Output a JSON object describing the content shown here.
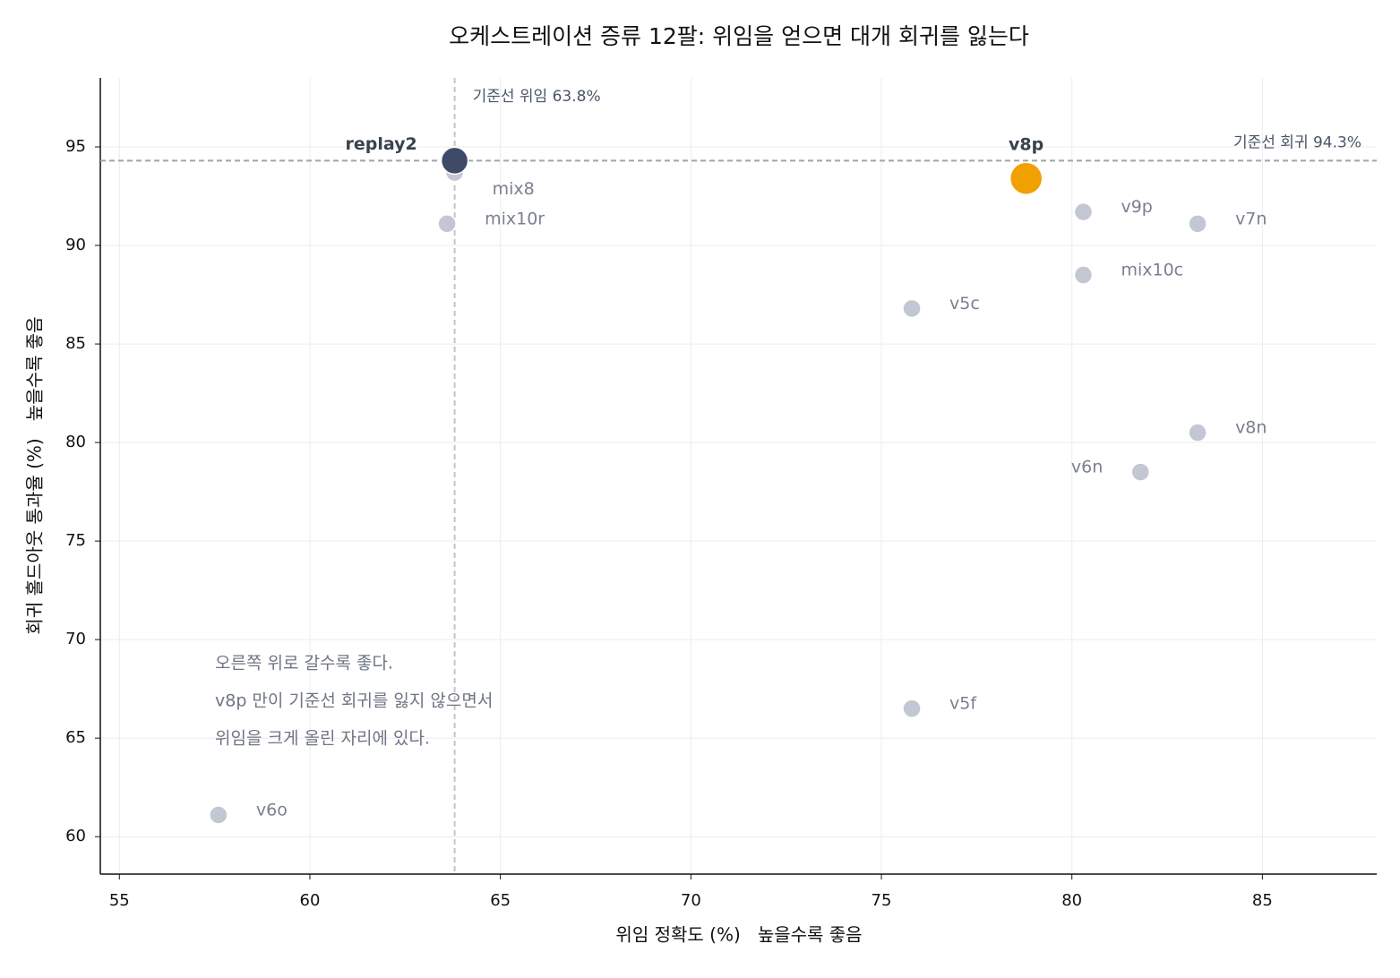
{
  "chart_data": {
    "type": "scatter",
    "title": "오케스트레이션 증류 12팔: 위임을 얻으면 대개 회귀를 잃는다",
    "x_label": "위임 정확도 (%)   높을수록 좋음",
    "y_label": "회귀 홀드아웃 통과율 (%)   높을수록 좋음",
    "point_labels": [
      "replay2",
      "mix8",
      "mix10r",
      "v8p",
      "v9p",
      "v7n",
      "mix10c",
      "v5c",
      "v8n",
      "v6n",
      "v5f",
      "v6o"
    ],
    "x": [
      63.8,
      63.8,
      63.6,
      78.8,
      80.3,
      83.3,
      80.3,
      75.8,
      83.3,
      81.8,
      75.8,
      57.6
    ],
    "values": [
      94.3,
      93.7,
      91.1,
      93.4,
      91.7,
      91.1,
      88.5,
      86.8,
      80.5,
      78.5,
      66.5,
      61.1
    ],
    "colors": [
      "#3f4a68",
      "#c3c7d3",
      "#c3c7d3",
      "#f0a000",
      "#c3c7d3",
      "#c3c7d3",
      "#c3c7d3",
      "#c3c7d3",
      "#c3c7d3",
      "#c3c7d3",
      "#c3c7d3",
      "#c3c7d3"
    ],
    "reference_lines": [
      {
        "axis": "x",
        "value": 63.8,
        "label": "기준선 위임 63.8%"
      },
      {
        "axis": "y",
        "value": 94.3,
        "label": "기준선 회귀 94.3%"
      }
    ],
    "annotation": [
      "오른쪽 위로 갈수록 좋다.",
      "v8p 만이 기준선 회귀를 잃지 않으면서",
      "위임을 크게 올린 자리에 있다."
    ],
    "xlim": [
      54.5,
      88
    ],
    "ylim": [
      58.1,
      98.5
    ],
    "xticks": [
      55,
      60,
      65,
      70,
      75,
      80,
      85
    ],
    "yticks": [
      60,
      65,
      70,
      75,
      80,
      85,
      90,
      95
    ],
    "grid": true
  }
}
